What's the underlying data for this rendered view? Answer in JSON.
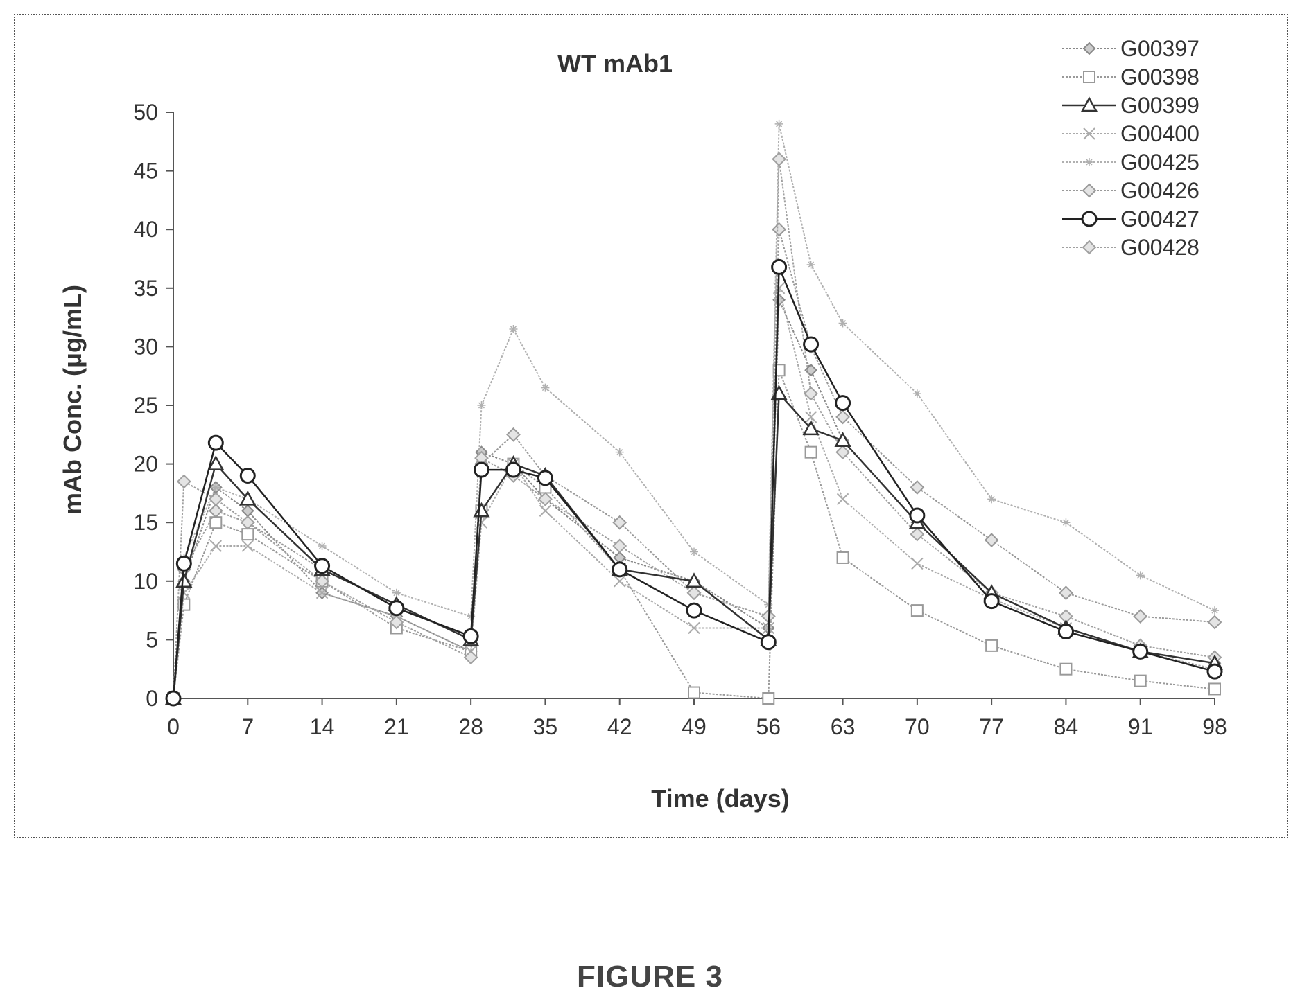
{
  "figure_caption": "FIGURE 3",
  "chart_data": {
    "type": "line",
    "title": "WT mAb1",
    "xlabel": "Time (days)",
    "ylabel": "mAb Conc. (μg/mL)",
    "xlim": [
      0,
      98
    ],
    "ylim": [
      0,
      50
    ],
    "x_ticks": [
      0,
      7,
      14,
      21,
      28,
      35,
      42,
      49,
      56,
      63,
      70,
      77,
      84,
      91,
      98
    ],
    "y_ticks": [
      0,
      5,
      10,
      15,
      20,
      25,
      30,
      35,
      40,
      45,
      50
    ],
    "grid": false,
    "legend_position": "top-right",
    "series": [
      {
        "name": "G00397",
        "color": "#888888",
        "marker": "diamond",
        "dark": false,
        "points": [
          [
            0,
            0
          ],
          [
            1,
            10
          ],
          [
            4,
            18
          ],
          [
            7,
            16
          ],
          [
            14,
            9
          ],
          [
            21,
            7
          ],
          [
            28,
            4
          ],
          [
            29,
            21
          ],
          [
            32,
            20
          ],
          [
            35,
            17
          ],
          [
            42,
            12
          ],
          [
            49,
            10
          ],
          [
            56,
            6
          ],
          [
            57,
            34
          ],
          [
            60,
            28
          ],
          [
            63,
            22
          ],
          [
            70,
            15
          ],
          [
            77,
            9
          ],
          [
            84,
            6
          ],
          [
            91,
            4
          ],
          [
            98,
            3
          ]
        ]
      },
      {
        "name": "G00398",
        "color": "#999999",
        "marker": "square",
        "dark": false,
        "points": [
          [
            0,
            0
          ],
          [
            1,
            8
          ],
          [
            4,
            15
          ],
          [
            7,
            14
          ],
          [
            14,
            10
          ],
          [
            21,
            6
          ],
          [
            28,
            4
          ],
          [
            29,
            16
          ],
          [
            32,
            20
          ],
          [
            35,
            18
          ],
          [
            42,
            11
          ],
          [
            49,
            0.5
          ],
          [
            56,
            0
          ],
          [
            57,
            28
          ],
          [
            60,
            21
          ],
          [
            63,
            12
          ],
          [
            70,
            7.5
          ],
          [
            77,
            4.5
          ],
          [
            84,
            2.5
          ],
          [
            91,
            1.5
          ],
          [
            98,
            0.8
          ]
        ]
      },
      {
        "name": "G00399",
        "color": "#333333",
        "marker": "triangle",
        "dark": true,
        "points": [
          [
            0,
            0
          ],
          [
            1,
            10
          ],
          [
            4,
            20
          ],
          [
            7,
            17
          ],
          [
            14,
            11
          ],
          [
            21,
            8
          ],
          [
            28,
            5
          ],
          [
            29,
            16
          ],
          [
            32,
            20
          ],
          [
            35,
            19
          ],
          [
            42,
            11
          ],
          [
            49,
            10
          ],
          [
            56,
            5
          ],
          [
            57,
            26
          ],
          [
            60,
            23
          ],
          [
            63,
            22
          ],
          [
            70,
            15
          ],
          [
            77,
            9
          ],
          [
            84,
            6
          ],
          [
            91,
            4
          ],
          [
            98,
            3
          ]
        ]
      },
      {
        "name": "G00400",
        "color": "#aaaaaa",
        "marker": "x",
        "dark": false,
        "points": [
          [
            0,
            0
          ],
          [
            1,
            9
          ],
          [
            4,
            13
          ],
          [
            7,
            13
          ],
          [
            14,
            9
          ],
          [
            21,
            7
          ],
          [
            28,
            4
          ],
          [
            29,
            15
          ],
          [
            32,
            20
          ],
          [
            35,
            16
          ],
          [
            42,
            10
          ],
          [
            49,
            6
          ],
          [
            56,
            6
          ],
          [
            57,
            35
          ],
          [
            60,
            24
          ],
          [
            63,
            17
          ],
          [
            70,
            11.5
          ],
          [
            77,
            8.5
          ],
          [
            84,
            6
          ],
          [
            91,
            4
          ],
          [
            98,
            2.5
          ]
        ]
      },
      {
        "name": "G00425",
        "color": "#b0b0b0",
        "marker": "star",
        "dark": false,
        "points": [
          [
            0,
            0
          ],
          [
            1,
            12
          ],
          [
            4,
            18
          ],
          [
            7,
            17
          ],
          [
            14,
            13
          ],
          [
            21,
            9
          ],
          [
            28,
            7
          ],
          [
            29,
            25
          ],
          [
            32,
            31.5
          ],
          [
            35,
            26.5
          ],
          [
            42,
            21
          ],
          [
            49,
            12.5
          ],
          [
            56,
            8
          ],
          [
            57,
            49
          ],
          [
            60,
            37
          ],
          [
            63,
            32
          ],
          [
            70,
            26
          ],
          [
            77,
            17
          ],
          [
            84,
            15
          ],
          [
            91,
            10.5
          ],
          [
            98,
            7.5
          ]
        ]
      },
      {
        "name": "G00426",
        "color": "#999999",
        "marker": "diamond-open",
        "dark": false,
        "points": [
          [
            0,
            0
          ],
          [
            1,
            11
          ],
          [
            4,
            16
          ],
          [
            7,
            15
          ],
          [
            14,
            11
          ],
          [
            21,
            8
          ],
          [
            28,
            5
          ],
          [
            29,
            20
          ],
          [
            32,
            22.5
          ],
          [
            35,
            19
          ],
          [
            42,
            15
          ],
          [
            49,
            9
          ],
          [
            56,
            7
          ],
          [
            57,
            40
          ],
          [
            60,
            30
          ],
          [
            63,
            24
          ],
          [
            70,
            18
          ],
          [
            77,
            13.5
          ],
          [
            84,
            9
          ],
          [
            91,
            7
          ],
          [
            98,
            6.5
          ]
        ]
      },
      {
        "name": "G00427",
        "color": "#222222",
        "marker": "circle",
        "dark": true,
        "points": [
          [
            0,
            0
          ],
          [
            1,
            11.5
          ],
          [
            4,
            21.8
          ],
          [
            7,
            19
          ],
          [
            14,
            11.3
          ],
          [
            21,
            7.7
          ],
          [
            28,
            5.3
          ],
          [
            29,
            19.5
          ],
          [
            32,
            19.5
          ],
          [
            35,
            18.8
          ],
          [
            42,
            11
          ],
          [
            49,
            7.5
          ],
          [
            56,
            4.8
          ],
          [
            57,
            36.8
          ],
          [
            60,
            30.2
          ],
          [
            63,
            25.2
          ],
          [
            70,
            15.6
          ],
          [
            77,
            8.3
          ],
          [
            84,
            5.7
          ],
          [
            91,
            4
          ],
          [
            98,
            2.3
          ]
        ]
      },
      {
        "name": "G00428",
        "color": "#a0a0a0",
        "marker": "diamond-open",
        "dark": false,
        "points": [
          [
            0,
            0
          ],
          [
            1,
            18.5
          ],
          [
            4,
            17
          ],
          [
            7,
            15
          ],
          [
            14,
            10
          ],
          [
            21,
            6.5
          ],
          [
            28,
            3.5
          ],
          [
            29,
            20.5
          ],
          [
            32,
            19
          ],
          [
            35,
            17
          ],
          [
            42,
            13
          ],
          [
            49,
            9
          ],
          [
            56,
            7
          ],
          [
            57,
            46
          ],
          [
            60,
            26
          ],
          [
            63,
            21
          ],
          [
            70,
            14
          ],
          [
            77,
            9
          ],
          [
            84,
            7
          ],
          [
            91,
            4.5
          ],
          [
            98,
            3.5
          ]
        ]
      }
    ]
  }
}
